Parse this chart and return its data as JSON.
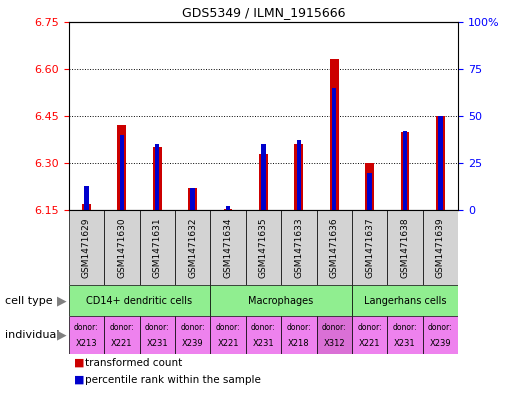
{
  "title": "GDS5349 / ILMN_1915666",
  "samples": [
    "GSM1471629",
    "GSM1471630",
    "GSM1471631",
    "GSM1471632",
    "GSM1471634",
    "GSM1471635",
    "GSM1471633",
    "GSM1471636",
    "GSM1471637",
    "GSM1471638",
    "GSM1471639"
  ],
  "red_values": [
    6.17,
    6.42,
    6.35,
    6.22,
    6.155,
    6.33,
    6.36,
    6.63,
    6.3,
    6.4,
    6.45
  ],
  "blue_values": [
    13,
    40,
    35,
    12,
    2,
    35,
    37,
    65,
    20,
    42,
    50
  ],
  "ylim_left": [
    6.15,
    6.75
  ],
  "ylim_right": [
    0,
    100
  ],
  "yticks_left": [
    6.15,
    6.3,
    6.45,
    6.6,
    6.75
  ],
  "yticks_right": [
    0,
    25,
    50,
    75,
    100
  ],
  "ytick_labels_right": [
    "0",
    "25",
    "50",
    "75",
    "100%"
  ],
  "cell_types": [
    {
      "label": "CD14+ dendritic cells",
      "start": 0,
      "end": 4
    },
    {
      "label": "Macrophages",
      "start": 4,
      "end": 8
    },
    {
      "label": "Langerhans cells",
      "start": 8,
      "end": 11
    }
  ],
  "individuals": [
    {
      "donor": "X213",
      "col": 0,
      "bright": false
    },
    {
      "donor": "X221",
      "col": 1,
      "bright": false
    },
    {
      "donor": "X231",
      "col": 2,
      "bright": false
    },
    {
      "donor": "X239",
      "col": 3,
      "bright": false
    },
    {
      "donor": "X221",
      "col": 4,
      "bright": false
    },
    {
      "donor": "X231",
      "col": 5,
      "bright": false
    },
    {
      "donor": "X218",
      "col": 6,
      "bright": false
    },
    {
      "donor": "X312",
      "col": 7,
      "bright": true
    },
    {
      "donor": "X221",
      "col": 8,
      "bright": false
    },
    {
      "donor": "X231",
      "col": 9,
      "bright": false
    },
    {
      "donor": "X239",
      "col": 10,
      "bright": false
    }
  ],
  "red_color": "#cc0000",
  "blue_color": "#0000cc",
  "sample_bg_color": "#d3d3d3",
  "cell_type_color": "#90ee90",
  "ind_color_normal": "#ee82ee",
  "ind_color_bright": "#da70d6",
  "base_value": 6.15,
  "red_bar_width": 0.25,
  "blue_bar_width": 0.12
}
